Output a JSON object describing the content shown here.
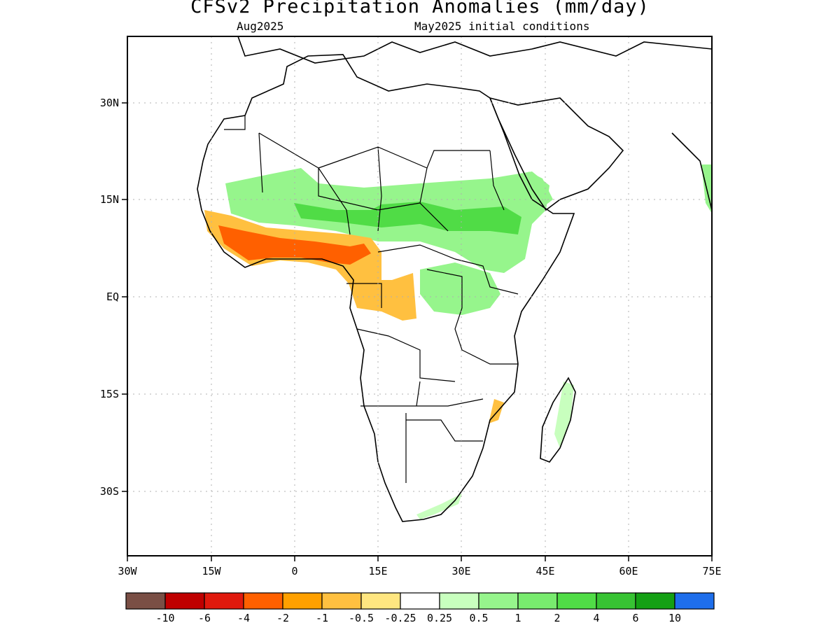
{
  "title": "CFSv2 Precipitation Anomalies (mm/day)",
  "subtitle_left": "Aug2025",
  "subtitle_right": "May2025 initial conditions",
  "map": {
    "lon_range": [
      -30,
      75
    ],
    "lat_range": [
      -40,
      40
    ],
    "x_ticks": [
      "30W",
      "15W",
      "0",
      "15E",
      "30E",
      "45E",
      "60E",
      "75E"
    ],
    "y_ticks": [
      "30N",
      "15N",
      "EQ",
      "15S",
      "30S"
    ],
    "grid": true
  },
  "legend": {
    "colors": [
      "#7a4f45",
      "#bf0000",
      "#e0190d",
      "#ff6000",
      "#ffa000",
      "#ffc040",
      "#ffe680",
      "#ffffff",
      "#c8ffbe",
      "#96f58c",
      "#78eb6e",
      "#50dc46",
      "#37c333",
      "#14a014",
      "#1e6eeb"
    ],
    "labels": [
      "-10",
      "-6",
      "-4",
      "-2",
      "-1",
      "-0.5",
      "-0.25",
      "0.25",
      "0.5",
      "1",
      "2",
      "4",
      "6",
      "10"
    ]
  }
}
